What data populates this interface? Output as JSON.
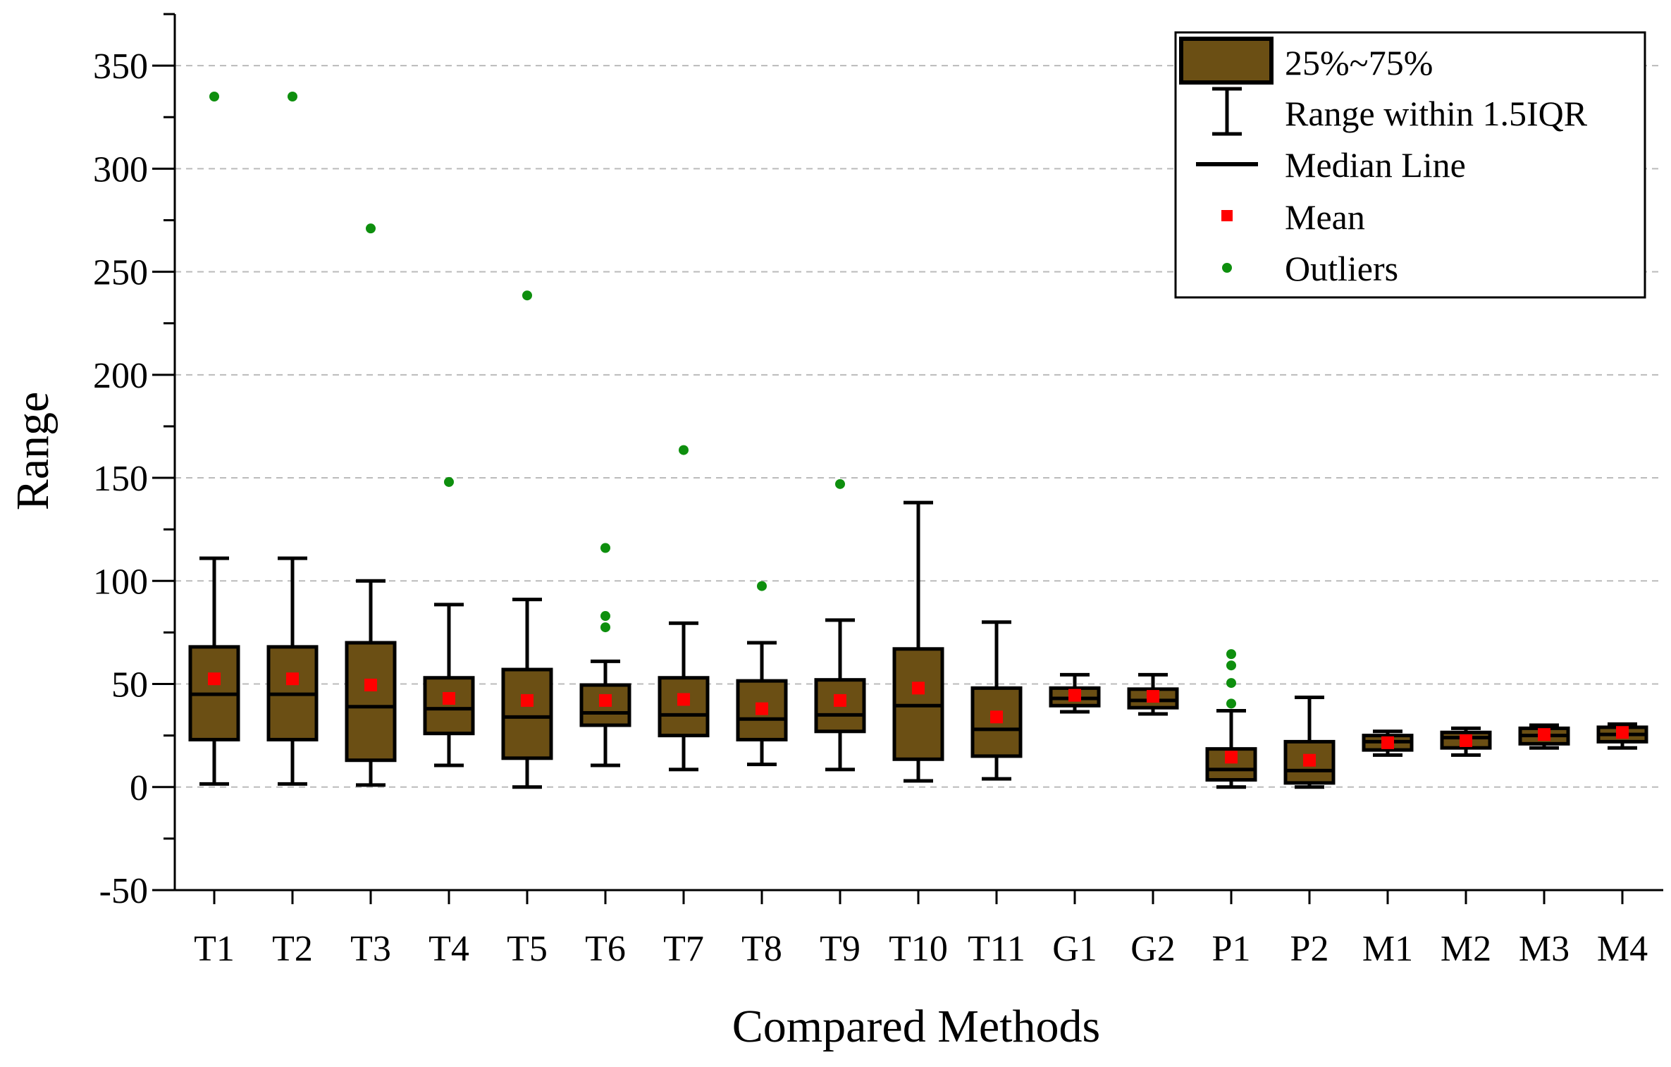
{
  "chart_data": {
    "type": "boxplot",
    "title": "",
    "xlabel": "Compared Methods",
    "ylabel": "Range",
    "ylim": [
      -50,
      375
    ],
    "yticks": [
      -50,
      0,
      50,
      100,
      150,
      200,
      250,
      300,
      350
    ],
    "grid": "horizontal-dashed",
    "legend_position": "top-right",
    "categories": [
      "T1",
      "T2",
      "T3",
      "T4",
      "T5",
      "T6",
      "T7",
      "T8",
      "T9",
      "T10",
      "T11",
      "G1",
      "G2",
      "P1",
      "P2",
      "M1",
      "M2",
      "M3",
      "M4"
    ],
    "boxes": [
      {
        "name": "T1",
        "whisker_low": 1.5,
        "q1": 23,
        "median": 45,
        "q3": 68,
        "whisker_high": 111,
        "mean": 52.5,
        "outliers": [
          335
        ]
      },
      {
        "name": "T2",
        "whisker_low": 1.5,
        "q1": 23,
        "median": 45,
        "q3": 68,
        "whisker_high": 111,
        "mean": 52.5,
        "outliers": [
          335
        ]
      },
      {
        "name": "T3",
        "whisker_low": 1,
        "q1": 13,
        "median": 39,
        "q3": 70,
        "whisker_high": 100,
        "mean": 49.5,
        "outliers": [
          271
        ]
      },
      {
        "name": "T4",
        "whisker_low": 10.5,
        "q1": 26,
        "median": 38,
        "q3": 53,
        "whisker_high": 88.5,
        "mean": 43,
        "outliers": [
          148
        ]
      },
      {
        "name": "T5",
        "whisker_low": 0,
        "q1": 14,
        "median": 34,
        "q3": 57,
        "whisker_high": 91,
        "mean": 42,
        "outliers": [
          238.5
        ]
      },
      {
        "name": "T6",
        "whisker_low": 10.5,
        "q1": 30,
        "median": 36,
        "q3": 49.5,
        "whisker_high": 61,
        "mean": 42,
        "outliers": [
          77.5,
          83,
          116
        ]
      },
      {
        "name": "T7",
        "whisker_low": 8.5,
        "q1": 25,
        "median": 35,
        "q3": 53,
        "whisker_high": 79.5,
        "mean": 42.5,
        "outliers": [
          163.5
        ]
      },
      {
        "name": "T8",
        "whisker_low": 11,
        "q1": 23,
        "median": 33,
        "q3": 51.5,
        "whisker_high": 70,
        "mean": 38,
        "outliers": [
          97.5
        ]
      },
      {
        "name": "T9",
        "whisker_low": 8.5,
        "q1": 27,
        "median": 35,
        "q3": 52,
        "whisker_high": 81,
        "mean": 42,
        "outliers": [
          147
        ]
      },
      {
        "name": "T10",
        "whisker_low": 3,
        "q1": 13.5,
        "median": 39.5,
        "q3": 67,
        "whisker_high": 138,
        "mean": 48,
        "outliers": []
      },
      {
        "name": "T11",
        "whisker_low": 4,
        "q1": 15,
        "median": 28,
        "q3": 48,
        "whisker_high": 80,
        "mean": 34,
        "outliers": []
      },
      {
        "name": "G1",
        "whisker_low": 36.5,
        "q1": 39.5,
        "median": 43,
        "q3": 48,
        "whisker_high": 54.5,
        "mean": 44.5,
        "outliers": []
      },
      {
        "name": "G2",
        "whisker_low": 35.5,
        "q1": 38.5,
        "median": 42,
        "q3": 47.5,
        "whisker_high": 54.5,
        "mean": 44,
        "outliers": []
      },
      {
        "name": "P1",
        "whisker_low": 0,
        "q1": 3.5,
        "median": 8.5,
        "q3": 18.5,
        "whisker_high": 37,
        "mean": 14.5,
        "outliers": [
          40.5,
          50.5,
          59,
          64.5
        ]
      },
      {
        "name": "P2",
        "whisker_low": 0,
        "q1": 2,
        "median": 8,
        "q3": 22,
        "whisker_high": 43.5,
        "mean": 13,
        "outliers": []
      },
      {
        "name": "M1",
        "whisker_low": 15.5,
        "q1": 18,
        "median": 22,
        "q3": 25,
        "whisker_high": 27,
        "mean": 21.5,
        "outliers": []
      },
      {
        "name": "M2",
        "whisker_low": 15.5,
        "q1": 19,
        "median": 24,
        "q3": 26.5,
        "whisker_high": 28.5,
        "mean": 22.5,
        "outliers": []
      },
      {
        "name": "M3",
        "whisker_low": 19,
        "q1": 21,
        "median": 25,
        "q3": 28.5,
        "whisker_high": 30,
        "mean": 25.5,
        "outliers": []
      },
      {
        "name": "M4",
        "whisker_low": 19,
        "q1": 22,
        "median": 25.5,
        "q3": 29,
        "whisker_high": 30.5,
        "mean": 26.5,
        "outliers": []
      }
    ],
    "legend": {
      "box": "25%~75%",
      "whisker": "Range within 1.5IQR",
      "median": "Median Line",
      "mean": "Mean",
      "outliers": "Outliers"
    },
    "colors": {
      "box_fill": "#6b4f14",
      "mean": "#ff0000",
      "outlier": "#0e8f0e",
      "line": "#000000",
      "grid": "#bbbbbb"
    }
  }
}
